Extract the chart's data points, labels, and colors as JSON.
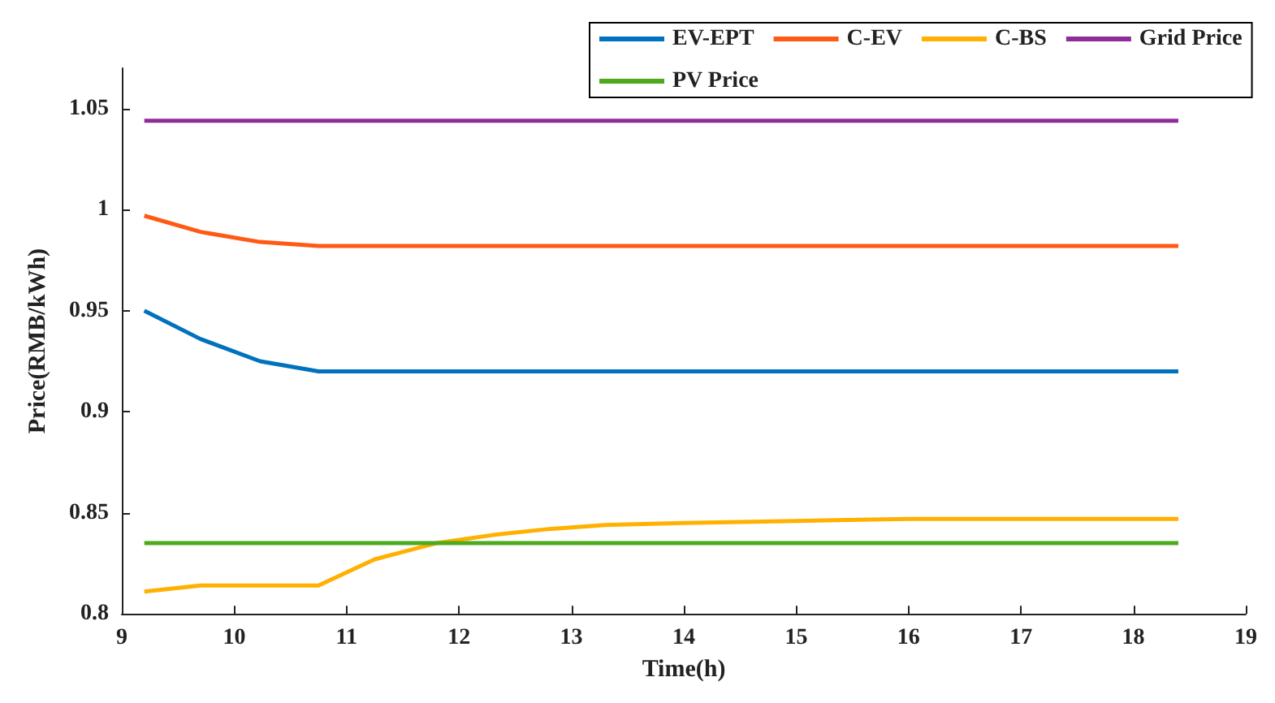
{
  "chart_data": {
    "type": "line",
    "xlabel": "Time(h)",
    "ylabel": "Price(RMB/kWh)",
    "xlim": [
      9,
      19
    ],
    "xticks": [
      9,
      10,
      11,
      12,
      13,
      14,
      15,
      16,
      17,
      18,
      19
    ],
    "ylim": [
      0.8,
      1.07
    ],
    "yticks": [
      0.8,
      0.85,
      0.9,
      0.95,
      1,
      1.05
    ],
    "grid": false,
    "legend": "top",
    "marker": "none",
    "line_style": "solid",
    "series": [
      {
        "name": "EV-EPT",
        "color": "#0072bd",
        "x": [
          9.2,
          9.7,
          10.23,
          10.75,
          18.4
        ],
        "values": [
          0.95,
          0.936,
          0.925,
          0.92,
          0.92
        ]
      },
      {
        "name": "C-EV",
        "color": "#ff5a14",
        "x": [
          9.2,
          9.7,
          10.23,
          10.75,
          18.4
        ],
        "values": [
          0.997,
          0.989,
          0.984,
          0.982,
          0.982
        ]
      },
      {
        "name": "C-BS",
        "color": "#ffb000",
        "x": [
          9.2,
          9.7,
          10.23,
          10.75,
          11.25,
          11.8,
          12.3,
          12.8,
          13.3,
          14,
          15,
          16,
          18.4
        ],
        "values": [
          0.811,
          0.814,
          0.814,
          0.814,
          0.827,
          0.835,
          0.839,
          0.842,
          0.844,
          0.845,
          0.846,
          0.847,
          0.847
        ]
      },
      {
        "name": "Grid Price",
        "color": "#8e2c9a",
        "x": [
          9.2,
          18.4
        ],
        "values": [
          1.044,
          1.044
        ]
      },
      {
        "name": "PV Price",
        "color": "#4daa1c",
        "x": [
          9.2,
          18.4
        ],
        "values": [
          0.835,
          0.835
        ]
      }
    ]
  }
}
